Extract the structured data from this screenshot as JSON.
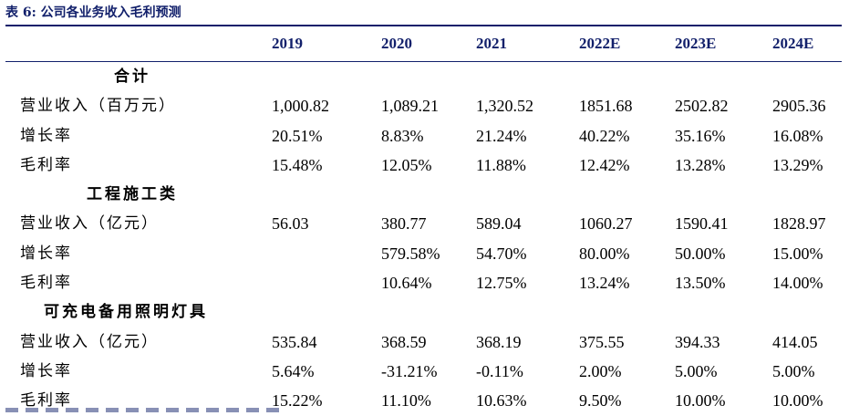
{
  "caption": "表 6: 公司各业务收入毛利预测",
  "headers": [
    "2019",
    "2020",
    "2021",
    "2022E",
    "2023E",
    "2024E"
  ],
  "rows": [
    {
      "type": "section",
      "label": "合计",
      "values": [
        "",
        "",
        "",
        "",
        "",
        ""
      ]
    },
    {
      "type": "data",
      "label": "营业收入（百万元）",
      "values": [
        "1,000.82",
        "1,089.21",
        "1,320.52",
        "1851.68",
        "2502.82",
        "2905.36"
      ]
    },
    {
      "type": "data",
      "label": "增长率",
      "values": [
        "20.51%",
        "8.83%",
        "21.24%",
        "40.22%",
        "35.16%",
        "16.08%"
      ]
    },
    {
      "type": "data",
      "label": "毛利率",
      "values": [
        "15.48%",
        "12.05%",
        "11.88%",
        "12.42%",
        "13.28%",
        "13.29%"
      ]
    },
    {
      "type": "section",
      "label": "工程施工类",
      "values": [
        "",
        "",
        "",
        "",
        "",
        ""
      ]
    },
    {
      "type": "data",
      "label": "营业收入（亿元）",
      "values": [
        "56.03",
        "380.77",
        "589.04",
        "1060.27",
        "1590.41",
        "1828.97"
      ]
    },
    {
      "type": "data",
      "label": "增长率",
      "values": [
        "",
        "579.58%",
        "54.70%",
        "80.00%",
        "50.00%",
        "15.00%"
      ]
    },
    {
      "type": "data",
      "label": "毛利率",
      "values": [
        "",
        "10.64%",
        "12.75%",
        "13.24%",
        "13.50%",
        "14.00%"
      ]
    },
    {
      "type": "section",
      "label": "可充电备用照明灯具",
      "values": [
        "",
        "",
        "",
        "",
        "",
        ""
      ]
    },
    {
      "type": "data",
      "label": "营业收入（亿元）",
      "values": [
        "535.84",
        "368.59",
        "368.19",
        "375.55",
        "394.33",
        "414.05"
      ]
    },
    {
      "type": "data",
      "label": "增长率",
      "values": [
        "5.64%",
        "-31.21%",
        "-0.11%",
        "2.00%",
        "5.00%",
        "5.00%"
      ]
    },
    {
      "type": "data",
      "label": "毛利率",
      "values": [
        "15.22%",
        "11.10%",
        "10.63%",
        "9.50%",
        "10.00%",
        "10.00%"
      ]
    }
  ],
  "colors": {
    "accent": "#12206b",
    "text": "#000000"
  }
}
